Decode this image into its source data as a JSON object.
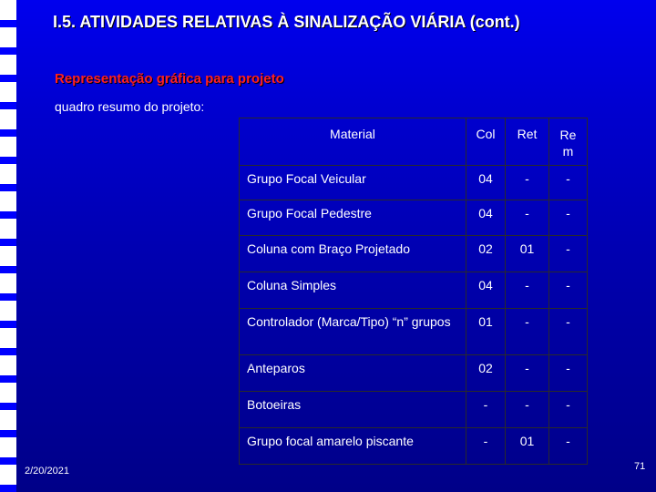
{
  "header": {
    "title": "I.5. ATIVIDADES RELATIVAS À SINALIZAÇÃO VIÁRIA (cont.)",
    "subtitle": "Representação gráfica para projeto",
    "intro": "quadro resumo do projeto:"
  },
  "table": {
    "headers": {
      "material": "Material",
      "col": "Col",
      "ret": "Ret",
      "rem_line1": "Re",
      "rem_line2": "m"
    },
    "rows": [
      {
        "material": "Grupo Focal Veicular",
        "col": "04",
        "ret": "-",
        "rem": "-"
      },
      {
        "material": "Grupo Focal Pedestre",
        "col": "04",
        "ret": "-",
        "rem": "-"
      },
      {
        "material": "Coluna com Braço Projetado",
        "col": "02",
        "ret": "01",
        "rem": "-"
      },
      {
        "material": "Coluna Simples",
        "col": "04",
        "ret": "-",
        "rem": "-"
      },
      {
        "material": "Controlador (Marca/Tipo) “n” grupos",
        "col": "01",
        "ret": "-",
        "rem": "-"
      },
      {
        "material": "Anteparos",
        "col": "02",
        "ret": "-",
        "rem": "-"
      },
      {
        "material": "Botoeiras",
        "col": "-",
        "ret": "-",
        "rem": "-"
      },
      {
        "material": "Grupo focal amarelo piscante",
        "col": "-",
        "ret": "01",
        "rem": "-"
      }
    ]
  },
  "footer": {
    "date": "2/20/2021",
    "page_number": "71"
  },
  "colors": {
    "background": "#0000cc",
    "title_text": "#ffffff",
    "subtitle_text": "#ff2020",
    "stripe": "#ffffff"
  }
}
